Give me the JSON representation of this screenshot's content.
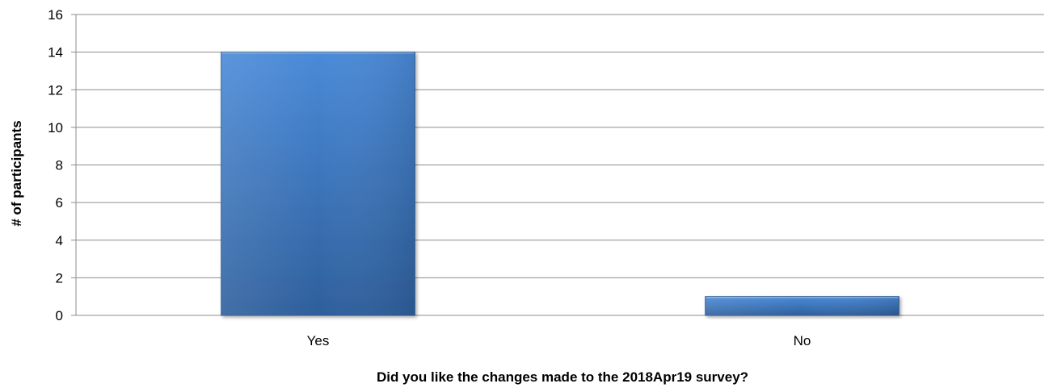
{
  "chart_data": {
    "type": "bar",
    "categories": [
      "Yes",
      "No"
    ],
    "values": [
      14,
      1
    ],
    "title": "",
    "xlabel": "Did you like the changes made to the 2018Apr19 survey?",
    "ylabel": "# of participants",
    "ylim": [
      0,
      16
    ],
    "yticks": [
      0,
      2,
      4,
      6,
      8,
      10,
      12,
      14,
      16
    ],
    "grid": true,
    "legend": "none",
    "colors": {
      "bar_top": "#4a8ad8",
      "bar_bottom": "#2e5f9c",
      "bar_edge": "#2a5a94",
      "grid": "#8c8c8c",
      "axis": "#8c8c8c"
    }
  }
}
